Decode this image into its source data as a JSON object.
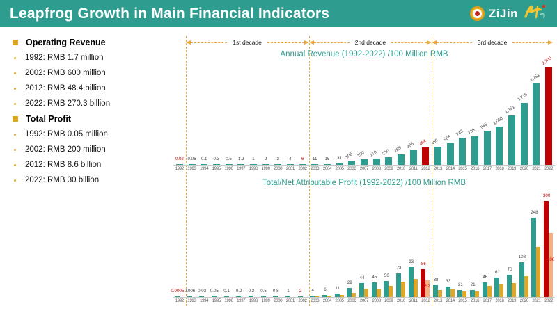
{
  "header": {
    "title": "Leapfrog Growth in Main Financial Indicators",
    "logo_text": "ZiJin",
    "bg_color": "#2E9C8E"
  },
  "sidebar": {
    "sections": [
      {
        "heading": "Operating Revenue",
        "items": [
          "1992: RMB 1.7 million",
          "2002: RMB 600 million",
          "2012: RMB 48.4 billion",
          "2022: RMB 270.3 billion"
        ]
      },
      {
        "heading": "Total Profit",
        "items": [
          "1992: RMB 0.05 million",
          "2002: RMB 200 million",
          "2012: RMB 8.6 billion",
          "2022: RMB 30 billion"
        ]
      }
    ]
  },
  "decades": {
    "labels": [
      "1st decade",
      "2nd decade",
      "3rd decade"
    ]
  },
  "colors": {
    "teal": "#2E9C8E",
    "red": "#C00000",
    "gold": "#DFA727",
    "salmon": "#F4B183",
    "dashed_gold": "#E9A93D",
    "title_text": "#2E9C8E"
  },
  "chart_data": [
    {
      "type": "bar",
      "title": "Annual Revenue (1992-2022) /100 Million RMB",
      "xlabel": "",
      "ylabel": "100 Million RMB",
      "ylim": [
        0,
        2800
      ],
      "legend": "none",
      "grid": "off",
      "categories": [
        "1992",
        "1993",
        "1994",
        "1995",
        "1996",
        "1997",
        "1998",
        "1999",
        "2000",
        "2001",
        "2002",
        "2003",
        "2004",
        "2005",
        "2006",
        "2007",
        "2008",
        "2009",
        "2010",
        "2011",
        "2012",
        "2013",
        "2014",
        "2015",
        "2016",
        "2017",
        "2018",
        "2019",
        "2020",
        "2021",
        "2022"
      ],
      "values": [
        0.02,
        0.06,
        0.1,
        0.3,
        0.5,
        1.2,
        1,
        2,
        3,
        4,
        6,
        11,
        15,
        31,
        108,
        150,
        170,
        210,
        285,
        398,
        484,
        499,
        588,
        743,
        789,
        945,
        1060,
        1361,
        1715,
        2251,
        2703
      ],
      "labels": [
        "0.02",
        "0.06",
        "0.1",
        "0.3",
        "0.5",
        "1.2",
        "1",
        "2",
        "3",
        "4",
        "6",
        "11",
        "15",
        "31",
        "108",
        "150",
        "170",
        "210",
        "285",
        "398",
        "484",
        "499",
        "588",
        "743",
        "789",
        "945",
        "1,060",
        "1,361",
        "1,715",
        "2,251",
        "2,703"
      ],
      "red_bar_years": [
        "2012",
        "2022"
      ],
      "red_label_years": [
        "1992",
        "2002",
        "2012",
        "2022"
      ]
    },
    {
      "type": "bar",
      "title": "Total/Net Attributable Profit (1992-2022) /100 Million RMB",
      "xlabel": "",
      "ylabel": "100 Million RMB",
      "ylim": [
        0,
        310
      ],
      "legend": "none",
      "grid": "off",
      "categories": [
        "1992",
        "1993",
        "1994",
        "1995",
        "1996",
        "1997",
        "1998",
        "1999",
        "2000",
        "2001",
        "2002",
        "2003",
        "2004",
        "2005",
        "2006",
        "2007",
        "2008",
        "2009",
        "2010",
        "2011",
        "2012",
        "2013",
        "2014",
        "2015",
        "2016",
        "2017",
        "2018",
        "2019",
        "2020",
        "2021",
        "2022"
      ],
      "series": [
        {
          "name": "Total Profit",
          "values": [
            0.0005,
            0.006,
            0.03,
            0.05,
            0.1,
            0.2,
            0.3,
            0.5,
            0.8,
            1,
            2,
            4,
            6,
            11,
            29,
            44,
            45,
            50,
            73,
            93,
            86,
            38,
            33,
            21,
            21,
            46,
            61,
            70,
            108,
            248,
            300
          ],
          "labels": [
            "0.0005",
            "0.006",
            "0.03",
            "0.05",
            "0.1",
            "0.2",
            "0.3",
            "0.5",
            "0.8",
            "1",
            "2",
            "4",
            "6",
            "11",
            "29",
            "44",
            "45",
            "50",
            "73",
            "93",
            "86",
            "38",
            "33",
            "21",
            "21",
            "46",
            "61",
            "70",
            "108",
            "248",
            "300"
          ]
        },
        {
          "name": "Net Attributable Profit",
          "values_est": [
            null,
            null,
            null,
            null,
            null,
            null,
            null,
            null,
            null,
            null,
            null,
            2.5,
            3,
            7,
            13,
            26,
            23,
            35,
            48,
            57,
            52,
            21,
            23,
            17,
            18,
            35,
            41,
            43,
            65,
            157,
            200
          ],
          "labels": {
            "2012": "52",
            "2022": "200"
          }
        }
      ],
      "red_bar_years": [
        "2012",
        "2022"
      ],
      "red_label_years": [
        "1992",
        "2002",
        "2012",
        "2022"
      ]
    }
  ]
}
